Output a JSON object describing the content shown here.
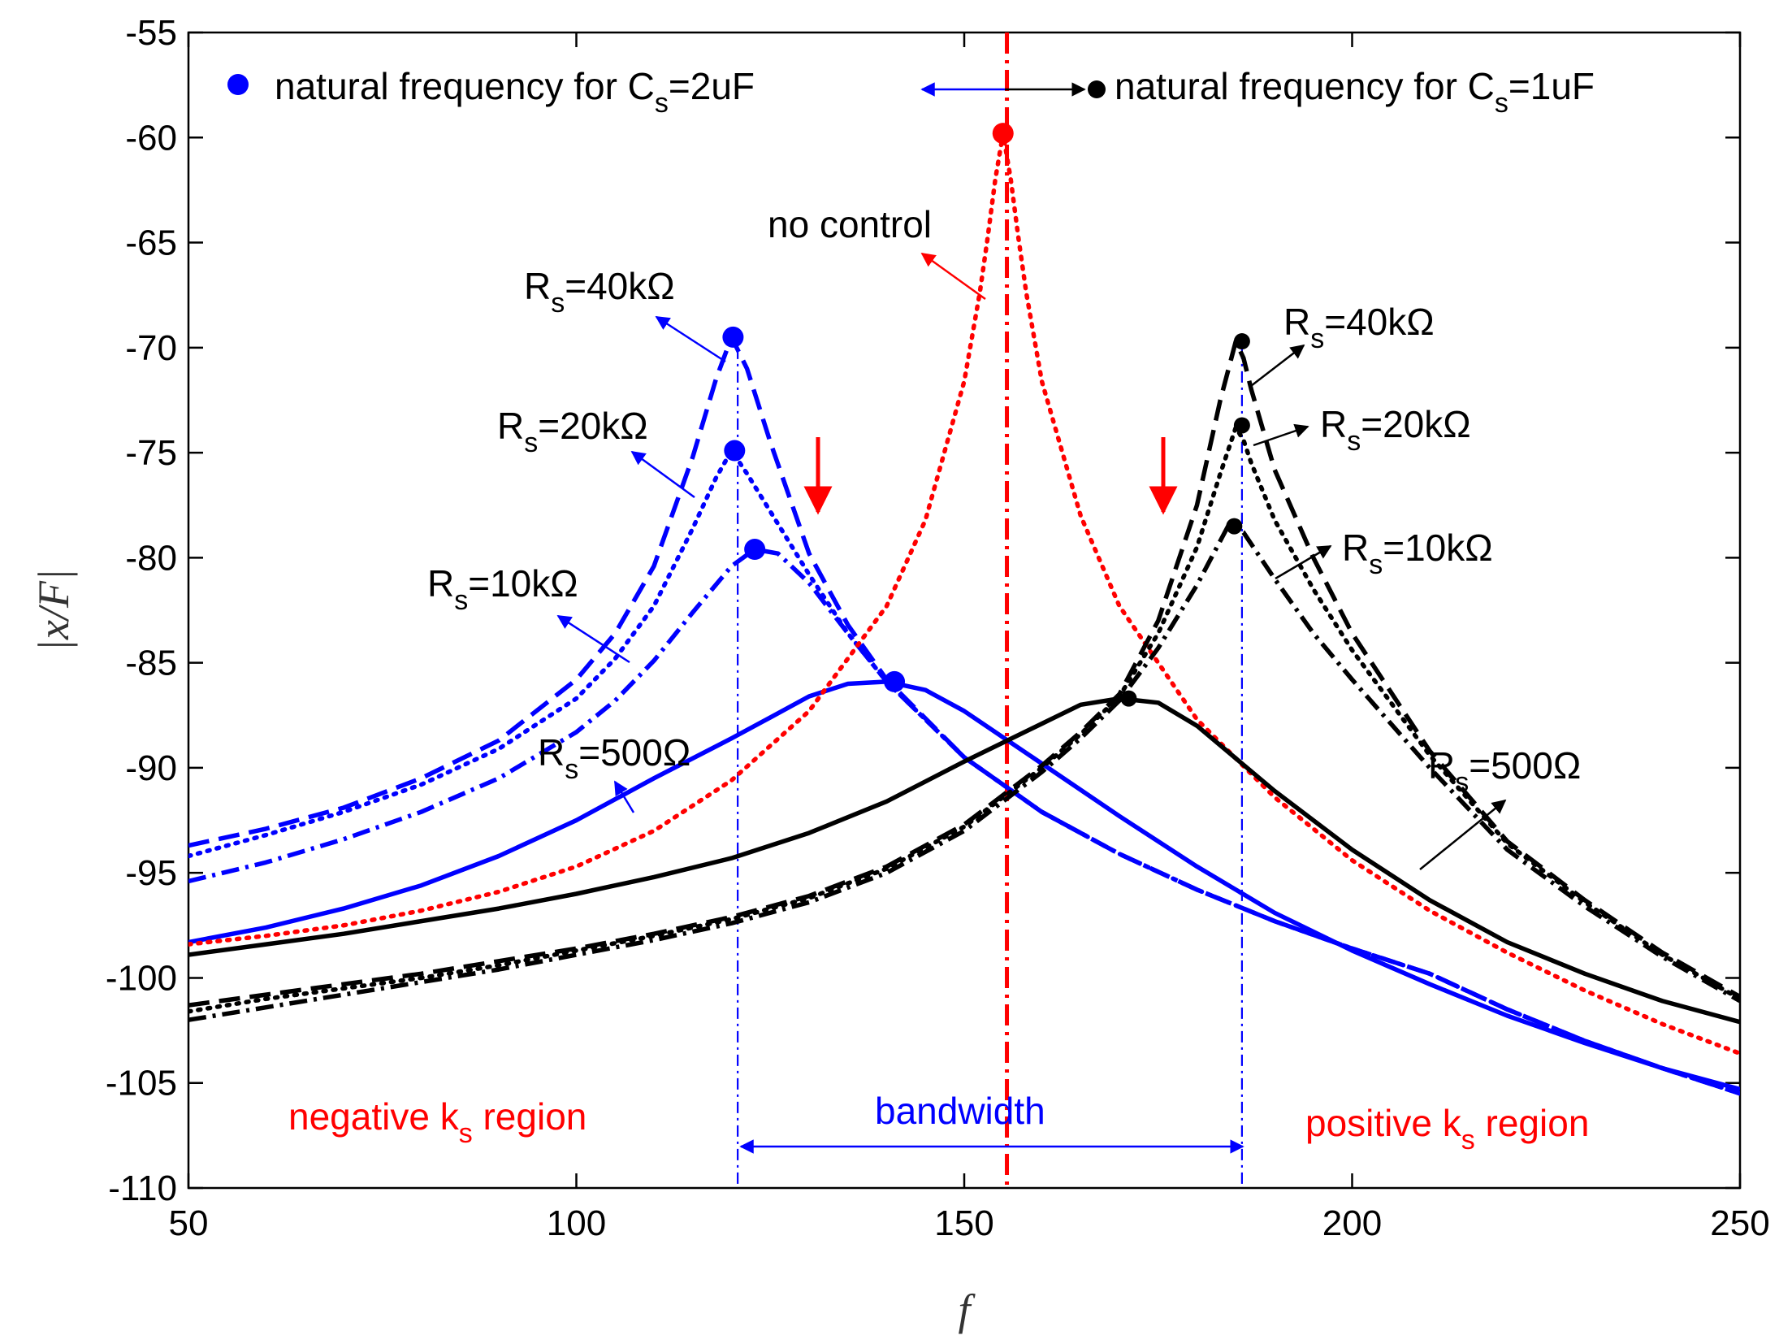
{
  "chart_data": {
    "type": "line",
    "title": "",
    "xlabel": "f",
    "ylabel": "|x/F|",
    "xlim": [
      50,
      250
    ],
    "ylim": [
      -110,
      -55
    ],
    "xticks": [
      50,
      100,
      150,
      200,
      250
    ],
    "yticks": [
      -55,
      -60,
      -65,
      -70,
      -75,
      -80,
      -85,
      -90,
      -95,
      -100,
      -105,
      -110
    ],
    "grid": false,
    "legend_position": "top",
    "legend": {
      "left": {
        "prefix": "natural frequency for C",
        "sub": "s",
        "suffix": "=2uF",
        "color": "#0000ff"
      },
      "right": {
        "prefix": "natural frequency for C",
        "sub": "s",
        "suffix": "=1uF",
        "color": "#000000"
      }
    },
    "series": [
      {
        "group": "Cs=2uF",
        "rs": "40kΩ",
        "style": "dashed",
        "color": "#0000ff",
        "x": [
          50,
          60,
          70,
          80,
          90,
          100,
          105,
          110,
          115,
          118,
          120,
          122,
          125,
          130,
          135,
          140,
          150,
          160,
          170,
          180,
          190,
          200,
          210,
          220,
          230,
          240,
          250
        ],
        "y": [
          -93.7,
          -92.9,
          -91.9,
          -90.5,
          -88.7,
          -85.8,
          -83.6,
          -80.4,
          -75.2,
          -71.5,
          -69.5,
          -71.0,
          -74.5,
          -79.8,
          -83.2,
          -85.8,
          -89.5,
          -92.1,
          -94.1,
          -95.8,
          -97.3,
          -98.6,
          -99.8,
          -101.5,
          -103.0,
          -104.3,
          -105.5
        ]
      },
      {
        "group": "Cs=2uF",
        "rs": "20kΩ",
        "style": "dotted",
        "color": "#0000ff",
        "x": [
          50,
          60,
          70,
          80,
          90,
          100,
          105,
          110,
          115,
          118,
          120,
          122,
          125,
          130,
          135,
          140,
          150,
          160,
          170,
          180,
          190,
          200,
          210,
          220,
          230,
          240,
          250
        ],
        "y": [
          -94.2,
          -93.2,
          -92.1,
          -90.8,
          -89.1,
          -86.7,
          -84.8,
          -82.3,
          -78.6,
          -76.2,
          -74.9,
          -76.0,
          -77.8,
          -80.8,
          -83.6,
          -85.9,
          -89.5,
          -92.1,
          -94.1,
          -95.8,
          -97.3,
          -98.6,
          -99.8,
          -101.5,
          -103.0,
          -104.3,
          -105.5
        ]
      },
      {
        "group": "Cs=2uF",
        "rs": "10kΩ",
        "style": "dashdot",
        "color": "#0000ff",
        "x": [
          50,
          60,
          70,
          80,
          90,
          100,
          105,
          110,
          115,
          120,
          123,
          126,
          130,
          135,
          140,
          150,
          160,
          170,
          180,
          190,
          200,
          210,
          220,
          230,
          240,
          250
        ],
        "y": [
          -95.4,
          -94.5,
          -93.4,
          -92.1,
          -90.5,
          -88.3,
          -86.8,
          -84.9,
          -82.6,
          -80.4,
          -79.6,
          -79.8,
          -81.2,
          -83.6,
          -85.9,
          -89.5,
          -92.1,
          -94.1,
          -95.8,
          -97.3,
          -98.6,
          -99.8,
          -101.5,
          -103.0,
          -104.3,
          -105.5
        ]
      },
      {
        "group": "Cs=2uF",
        "rs": "500Ω",
        "style": "solid",
        "color": "#0000ff",
        "x": [
          50,
          60,
          70,
          80,
          90,
          100,
          110,
          120,
          125,
          130,
          135,
          140,
          145,
          150,
          160,
          170,
          180,
          190,
          200,
          210,
          220,
          230,
          240,
          250
        ],
        "y": [
          -98.3,
          -97.6,
          -96.7,
          -95.6,
          -94.2,
          -92.5,
          -90.5,
          -88.6,
          -87.6,
          -86.6,
          -86.0,
          -85.9,
          -86.3,
          -87.3,
          -89.8,
          -92.3,
          -94.7,
          -96.9,
          -98.7,
          -100.3,
          -101.8,
          -103.1,
          -104.3,
          -105.3
        ]
      },
      {
        "group": "no control",
        "rs": "",
        "style": "dotted",
        "color": "#ff0000",
        "x": [
          50,
          60,
          70,
          80,
          90,
          100,
          110,
          120,
          130,
          140,
          145,
          150,
          152,
          153,
          154,
          155,
          156,
          157,
          158,
          160,
          165,
          170,
          180,
          190,
          200,
          210,
          220,
          230,
          240,
          250
        ],
        "y": [
          -98.4,
          -98.0,
          -97.5,
          -96.8,
          -95.9,
          -94.7,
          -93.0,
          -90.6,
          -87.3,
          -82.3,
          -78.2,
          -71.6,
          -67.4,
          -64.8,
          -62.0,
          -59.8,
          -62.0,
          -64.8,
          -67.4,
          -71.6,
          -78.0,
          -82.3,
          -87.7,
          -91.4,
          -94.4,
          -96.8,
          -98.8,
          -100.6,
          -102.2,
          -103.6
        ]
      },
      {
        "group": "Cs=1uF",
        "rs": "40kΩ",
        "style": "dashed",
        "color": "#000000",
        "x": [
          50,
          60,
          70,
          80,
          90,
          100,
          110,
          120,
          130,
          140,
          150,
          160,
          165,
          170,
          175,
          180,
          183,
          185,
          186,
          187,
          190,
          195,
          200,
          210,
          220,
          230,
          240,
          250
        ],
        "y": [
          -101.3,
          -100.8,
          -100.3,
          -99.8,
          -99.2,
          -98.6,
          -97.9,
          -97.1,
          -96.1,
          -94.7,
          -92.7,
          -89.9,
          -88.3,
          -86.5,
          -83.0,
          -77.5,
          -72.5,
          -69.7,
          -70.5,
          -72.0,
          -75.8,
          -80.0,
          -83.6,
          -89.2,
          -93.5,
          -96.3,
          -98.8,
          -100.9
        ]
      },
      {
        "group": "Cs=1uF",
        "rs": "20kΩ",
        "style": "dotted",
        "color": "#000000",
        "x": [
          50,
          60,
          70,
          80,
          90,
          100,
          110,
          120,
          130,
          140,
          150,
          160,
          165,
          170,
          175,
          180,
          183,
          185,
          186,
          187,
          190,
          195,
          200,
          210,
          220,
          230,
          240,
          250
        ],
        "y": [
          -101.6,
          -101.0,
          -100.5,
          -100.0,
          -99.4,
          -98.7,
          -98.0,
          -97.2,
          -96.2,
          -94.8,
          -92.8,
          -90.0,
          -88.4,
          -86.6,
          -83.6,
          -79.5,
          -76.0,
          -73.8,
          -74.4,
          -75.5,
          -78.2,
          -81.5,
          -84.4,
          -89.4,
          -93.6,
          -96.4,
          -98.9,
          -101.0
        ]
      },
      {
        "group": "Cs=1uF",
        "rs": "10kΩ",
        "style": "dashdot",
        "color": "#000000",
        "x": [
          50,
          60,
          70,
          80,
          90,
          100,
          110,
          120,
          130,
          140,
          150,
          160,
          165,
          170,
          175,
          180,
          184,
          186,
          188,
          190,
          195,
          200,
          210,
          220,
          230,
          240,
          250
        ],
        "y": [
          -102.0,
          -101.4,
          -100.8,
          -100.2,
          -99.6,
          -98.9,
          -98.2,
          -97.4,
          -96.4,
          -95.0,
          -93.0,
          -90.2,
          -88.6,
          -86.8,
          -84.3,
          -81.3,
          -78.5,
          -78.8,
          -79.9,
          -81.0,
          -83.6,
          -85.8,
          -90.0,
          -93.9,
          -96.6,
          -99.0,
          -101.1
        ]
      },
      {
        "group": "Cs=1uF",
        "rs": "500Ω",
        "style": "solid",
        "color": "#000000",
        "x": [
          50,
          60,
          70,
          80,
          90,
          100,
          110,
          120,
          130,
          140,
          150,
          160,
          165,
          170,
          175,
          180,
          190,
          200,
          210,
          220,
          230,
          240,
          250
        ],
        "y": [
          -98.9,
          -98.4,
          -97.9,
          -97.3,
          -96.7,
          -96.0,
          -95.2,
          -94.3,
          -93.1,
          -91.6,
          -89.7,
          -87.9,
          -87.0,
          -86.7,
          -86.9,
          -88.0,
          -91.1,
          -93.9,
          -96.3,
          -98.3,
          -99.8,
          -101.1,
          -102.1
        ]
      }
    ],
    "markers": [
      {
        "x": 120.2,
        "y": -69.5,
        "color": "#0000ff",
        "size": "large"
      },
      {
        "x": 120.4,
        "y": -74.9,
        "color": "#0000ff",
        "size": "large"
      },
      {
        "x": 123.0,
        "y": -79.6,
        "color": "#0000ff",
        "size": "large"
      },
      {
        "x": 141.0,
        "y": -85.9,
        "color": "#0000ff",
        "size": "large"
      },
      {
        "x": 155.0,
        "y": -59.8,
        "color": "#ff0000",
        "size": "large"
      },
      {
        "x": 185.8,
        "y": -69.7,
        "color": "#000000",
        "size": "small"
      },
      {
        "x": 185.8,
        "y": -73.7,
        "color": "#000000",
        "size": "small"
      },
      {
        "x": 184.8,
        "y": -78.5,
        "color": "#000000",
        "size": "small"
      },
      {
        "x": 171.2,
        "y": -86.7,
        "color": "#000000",
        "size": "small"
      }
    ],
    "vertical_lines": [
      {
        "x": 120.8,
        "color": "#0000ff",
        "style": "dashdot"
      },
      {
        "x": 185.8,
        "color": "#0000ff",
        "style": "dashdot"
      },
      {
        "x": 155.5,
        "color": "#ff0000",
        "style": "dashdot"
      }
    ],
    "annotations": {
      "no_control": {
        "text": "no control",
        "color": "#000000"
      },
      "negative_region": {
        "prefix": "negative k",
        "sub": "s",
        "suffix": " region",
        "color": "#ff0000"
      },
      "positive_region": {
        "prefix": "positive k",
        "sub": "s",
        "suffix": " region",
        "color": "#ff0000"
      },
      "bandwidth": {
        "text": "bandwidth",
        "color": "#0000ff"
      },
      "rs_labels": [
        {
          "prefix": "R",
          "sub": "s",
          "suffix": "=40kΩ",
          "side": "left"
        },
        {
          "prefix": "R",
          "sub": "s",
          "suffix": "=20kΩ",
          "side": "left"
        },
        {
          "prefix": "R",
          "sub": "s",
          "suffix": "=10kΩ",
          "side": "left"
        },
        {
          "prefix": "R",
          "sub": "s",
          "suffix": "=500Ω",
          "side": "left"
        },
        {
          "prefix": "R",
          "sub": "s",
          "suffix": "=40kΩ",
          "side": "right"
        },
        {
          "prefix": "R",
          "sub": "s",
          "suffix": "=20kΩ",
          "side": "right"
        },
        {
          "prefix": "R",
          "sub": "s",
          "suffix": "=10kΩ",
          "side": "right"
        },
        {
          "prefix": "R",
          "sub": "s",
          "suffix": "=500Ω",
          "side": "right"
        }
      ]
    }
  }
}
